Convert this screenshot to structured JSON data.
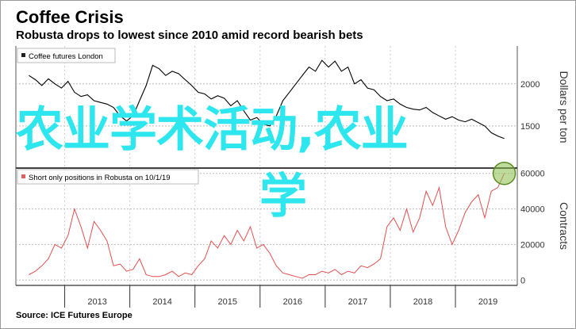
{
  "chart_data": [
    {
      "type": "line",
      "title": "Coffee Crisis",
      "subtitle": "Robusta drops to lowest since 2010 amid record bearish bets",
      "legend": "Coffee futures London",
      "legend_position": "top-left",
      "ylabel": "Dollars per ton",
      "ylim": [
        1000,
        2450
      ],
      "yticks": [
        1500,
        2000
      ],
      "x": [
        2012.45,
        2012.55,
        2012.65,
        2012.75,
        2012.85,
        2012.95,
        2013.05,
        2013.15,
        2013.25,
        2013.35,
        2013.45,
        2013.55,
        2013.65,
        2013.75,
        2013.85,
        2013.95,
        2014.05,
        2014.15,
        2014.25,
        2014.35,
        2014.45,
        2014.55,
        2014.65,
        2014.75,
        2014.85,
        2014.95,
        2015.05,
        2015.15,
        2015.25,
        2015.35,
        2015.45,
        2015.55,
        2015.65,
        2015.75,
        2015.85,
        2015.95,
        2016.05,
        2016.15,
        2016.25,
        2016.35,
        2016.45,
        2016.55,
        2016.65,
        2016.75,
        2016.85,
        2016.95,
        2017.05,
        2017.15,
        2017.25,
        2017.35,
        2017.45,
        2017.55,
        2017.65,
        2017.75,
        2017.85,
        2017.95,
        2018.05,
        2018.15,
        2018.25,
        2018.35,
        2018.45,
        2018.55,
        2018.65,
        2018.75,
        2018.85,
        2018.95,
        2019.05,
        2019.15,
        2019.25,
        2019.35,
        2019.45,
        2019.55,
        2019.65,
        2019.75
      ],
      "values": [
        2100,
        2050,
        1980,
        2060,
        2000,
        1950,
        2030,
        1900,
        1850,
        1870,
        1800,
        1780,
        1760,
        1720,
        1620,
        1560,
        1620,
        1800,
        1980,
        2220,
        2180,
        2100,
        2150,
        2120,
        2050,
        1980,
        1900,
        1880,
        1820,
        1860,
        1830,
        1740,
        1800,
        1680,
        1570,
        1600,
        1520,
        1500,
        1620,
        1800,
        1900,
        2000,
        2100,
        2200,
        2150,
        2280,
        2200,
        2270,
        2150,
        2200,
        2000,
        2050,
        1950,
        1930,
        1850,
        1800,
        1820,
        1760,
        1720,
        1700,
        1690,
        1720,
        1660,
        1620,
        1580,
        1610,
        1570,
        1550,
        1580,
        1540,
        1500,
        1420,
        1380,
        1350
      ]
    },
    {
      "type": "area",
      "legend": "Short only positions in Robusta on 10/1/19",
      "legend_position": "top-left",
      "ylabel": "Contracts",
      "ylim": [
        -3000,
        63000
      ],
      "yticks": [
        0,
        20000,
        40000,
        60000
      ],
      "x": [
        2012.45,
        2012.55,
        2012.65,
        2012.75,
        2012.85,
        2012.95,
        2013.05,
        2013.15,
        2013.25,
        2013.35,
        2013.45,
        2013.55,
        2013.65,
        2013.75,
        2013.85,
        2013.95,
        2014.05,
        2014.15,
        2014.25,
        2014.35,
        2014.45,
        2014.55,
        2014.65,
        2014.75,
        2014.85,
        2014.95,
        2015.05,
        2015.15,
        2015.25,
        2015.35,
        2015.45,
        2015.55,
        2015.65,
        2015.75,
        2015.85,
        2015.95,
        2016.05,
        2016.15,
        2016.25,
        2016.35,
        2016.45,
        2016.55,
        2016.65,
        2016.75,
        2016.85,
        2016.95,
        2017.05,
        2017.15,
        2017.25,
        2017.35,
        2017.45,
        2017.55,
        2017.65,
        2017.75,
        2017.85,
        2017.95,
        2018.05,
        2018.15,
        2018.25,
        2018.35,
        2018.45,
        2018.55,
        2018.65,
        2018.75,
        2018.85,
        2018.95,
        2019.05,
        2019.15,
        2019.25,
        2019.35,
        2019.45,
        2019.55,
        2019.65,
        2019.75
      ],
      "values": [
        3000,
        5000,
        8000,
        12000,
        20000,
        18000,
        25000,
        40000,
        30000,
        18000,
        33000,
        28000,
        22000,
        8000,
        9000,
        5000,
        6000,
        12000,
        3000,
        2000,
        2000,
        3000,
        5000,
        2000,
        4000,
        3000,
        8000,
        12000,
        22000,
        18000,
        25000,
        20000,
        28000,
        22000,
        30000,
        18000,
        20000,
        15000,
        8000,
        4000,
        3000,
        2000,
        1000,
        3000,
        3000,
        5000,
        4000,
        6000,
        3000,
        5000,
        4000,
        8000,
        7000,
        9000,
        12000,
        30000,
        35000,
        28000,
        40000,
        27000,
        35000,
        50000,
        42000,
        52000,
        30000,
        20000,
        28000,
        38000,
        44000,
        48000,
        35000,
        50000,
        52000,
        60000
      ]
    }
  ],
  "x_axis_ticks": [
    "2013",
    "2014",
    "2015",
    "2016",
    "2017",
    "2018",
    "2019"
  ],
  "highlight_marker_color": "#8bbe4a",
  "overlay_text_line1": "农业学术活动,农业",
  "overlay_text_line2": "学",
  "overlay_color": "#2ee6ee",
  "source": "Source: ICE Futures Europe"
}
